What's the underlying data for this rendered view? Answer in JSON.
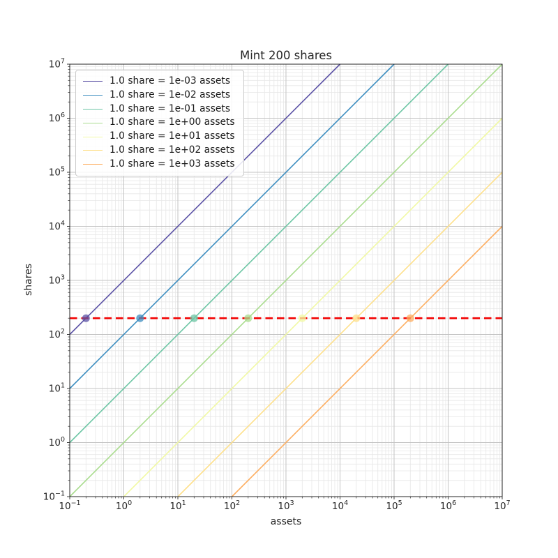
{
  "chart_data": {
    "type": "line",
    "title": "Mint 200 shares",
    "xlabel": "assets",
    "ylabel": "shares",
    "xscale": "log",
    "yscale": "log",
    "xlim": [
      0.1,
      10000000
    ],
    "ylim": [
      0.1,
      10000000
    ],
    "x_tick_exponents": [
      -1,
      0,
      1,
      2,
      3,
      4,
      5,
      6,
      7
    ],
    "y_tick_exponents": [
      -1,
      0,
      1,
      2,
      3,
      4,
      5,
      6,
      7
    ],
    "grid": "both major and minor, light gray, log decades",
    "legend_position": "upper left",
    "mint_shares": 200,
    "hline": {
      "shares": 200,
      "color": "#f20000",
      "linestyle": "dashed"
    },
    "series": [
      {
        "label": "1.0 share = 1e-03 assets",
        "assets_per_share": 0.001,
        "color": "#5b51a5",
        "marker": {
          "assets": 0.2,
          "shares": 200
        }
      },
      {
        "label": "1.0 share = 1e-02 assets",
        "assets_per_share": 0.01,
        "color": "#3d8ec0",
        "marker": {
          "assets": 2,
          "shares": 200
        }
      },
      {
        "label": "1.0 share = 1e-01 assets",
        "assets_per_share": 0.1,
        "color": "#6cc5a4",
        "marker": {
          "assets": 20,
          "shares": 200
        }
      },
      {
        "label": "1.0 share = 1e+00 assets",
        "assets_per_share": 1,
        "color": "#a9dc8e",
        "marker": {
          "assets": 200,
          "shares": 200
        }
      },
      {
        "label": "1.0 share = 1e+01 assets",
        "assets_per_share": 10,
        "color": "#f1f9a4",
        "marker": {
          "assets": 2000,
          "shares": 200
        }
      },
      {
        "label": "1.0 share = 1e+02 assets",
        "assets_per_share": 100,
        "color": "#fee08b",
        "marker": {
          "assets": 20000,
          "shares": 200
        }
      },
      {
        "label": "1.0 share = 1e+03 assets",
        "assets_per_share": 1000,
        "color": "#fdae61",
        "marker": {
          "assets": 200000,
          "shares": 200
        }
      }
    ],
    "style": {
      "grid_major_color": "#c3c3c3",
      "grid_minor_color": "#e7e7e7",
      "frame_color": "#262626",
      "text_color": "#262626",
      "marker_opacity": 0.75
    }
  }
}
